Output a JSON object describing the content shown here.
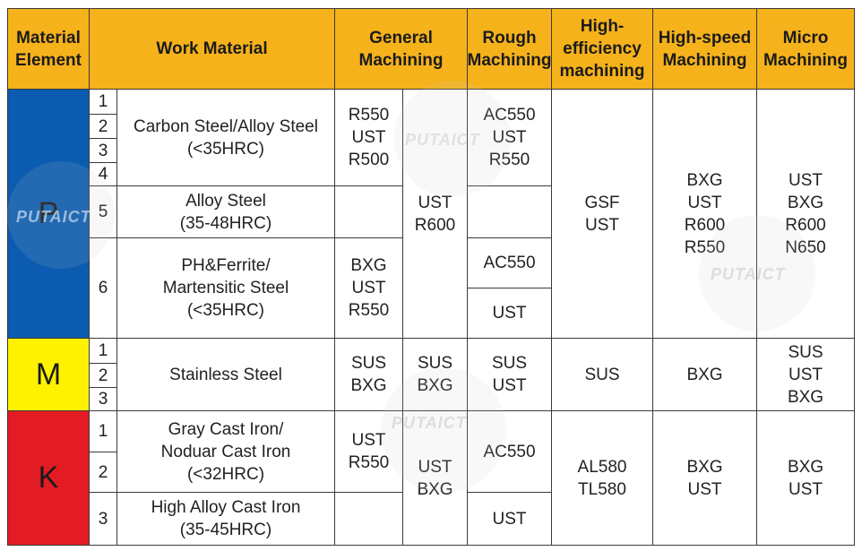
{
  "colors": {
    "header": "#f6b21b",
    "P": "#0b5cb0",
    "M": "#fff200",
    "K": "#e31b23"
  },
  "header": {
    "element": "Material\nElement",
    "work": "Work Material",
    "general": "General\nMachining",
    "rough": "Rough\nMachining",
    "high_eff": "High-\nefficiency\nmachining",
    "high_speed": "High-speed\nMachining",
    "micro": "Micro\nMachining"
  },
  "groups": {
    "P": "P",
    "M": "M",
    "K": "K"
  },
  "numbers": {
    "p1": "1",
    "p2": "2",
    "p3": "3",
    "p4": "4",
    "p5": "5",
    "p6": "6",
    "m1": "1",
    "m2": "2",
    "m3": "3",
    "k1": "1",
    "k2": "2",
    "k3": "3"
  },
  "work": {
    "carbon": "Carbon Steel/Alloy Steel\n(<35HRC)",
    "alloy": "Alloy Steel\n(35-48HRC)",
    "ph": "PH&Ferrite/\nMartensitic Steel\n(<35HRC)",
    "stainless": "Stainless Steel",
    "gray": "Gray Cast Iron/\nNoduar Cast Iron\n(<32HRC)",
    "high_alloy": "High Alloy Cast Iron\n(35-45HRC)"
  },
  "general": {
    "carbon": "R550\nUST\nR500",
    "alloy": "",
    "ph": "BXG\nUST\nR550",
    "p_shared": "UST\nR600",
    "m_a": "SUS\nBXG",
    "m_b": "SUS\nBXG",
    "k_a": "UST\nR550",
    "k_b": "UST\nBXG",
    "high_alloy": ""
  },
  "rough": {
    "carbon": "AC550\nUST\nR550",
    "alloy": "",
    "ph_a": "AC550",
    "ph_b": "UST",
    "m": "SUS\nUST",
    "k_a": "AC550",
    "k_b": "UST"
  },
  "high_eff": {
    "p": "GSF\nUST",
    "m": "SUS",
    "k": "AL580\nTL580"
  },
  "high_speed": {
    "p": "BXG\nUST\nR600\nR550",
    "m": "BXG",
    "k": "BXG\nUST"
  },
  "micro": {
    "p": "UST\nBXG\nR600\nN650",
    "m": "SUS\nUST\nBXG",
    "k": "BXG\nUST"
  },
  "watermark": "PUTAICT"
}
